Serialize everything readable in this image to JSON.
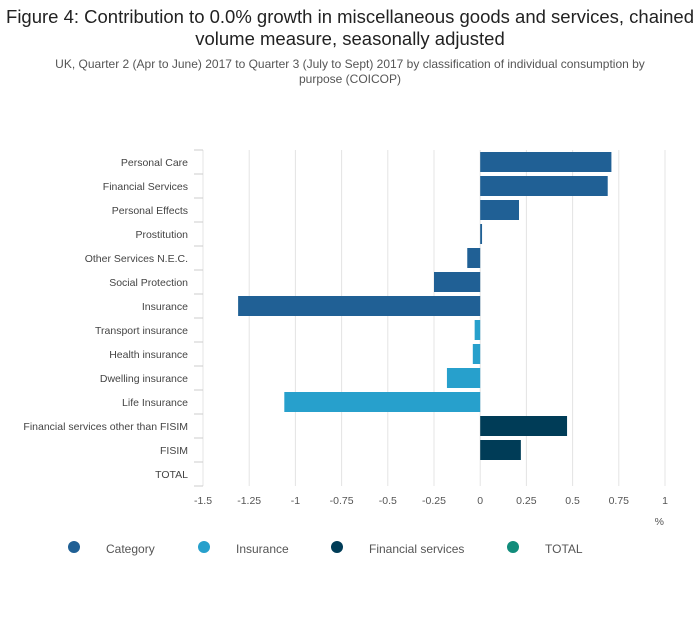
{
  "chart_data": {
    "type": "bar",
    "orientation": "horizontal",
    "title": "Figure 4: Contribution to 0.0% growth in miscellaneous goods and services, chained volume measure, seasonally adjusted",
    "subtitle": "UK, Quarter 2 (Apr to June) 2017 to Quarter 3 (July to Sept) 2017 by classification of individual consumption by purpose (COICOP)",
    "xlabel": "%",
    "xlim": [
      -1.5,
      1
    ],
    "xticks": [
      -1.5,
      -1.25,
      -1,
      -0.75,
      -0.5,
      -0.25,
      0,
      0.25,
      0.5,
      0.75,
      1
    ],
    "xtick_labels": [
      "-1.5",
      "-1.25",
      "-1",
      "-0.75",
      "-0.5",
      "-0.25",
      "0",
      "0.25",
      "0.5",
      "0.75",
      "1"
    ],
    "grid": true,
    "legend_position": "bottom",
    "categories": [
      "Personal Care",
      "Financial Services",
      "Personal Effects",
      "Prostitution",
      "Other Services N.E.C.",
      "Social Protection",
      "Insurance",
      "Transport insurance",
      "Health insurance",
      "Dwelling insurance",
      "Life Insurance",
      "Financial services other than FISIM",
      "FISIM",
      "TOTAL"
    ],
    "values": [
      0.71,
      0.69,
      0.21,
      0.01,
      -0.07,
      -0.25,
      -1.31,
      -0.03,
      -0.04,
      -0.18,
      -1.06,
      0.47,
      0.22,
      0
    ],
    "bar_groups": [
      "Category",
      "Category",
      "Category",
      "Category",
      "Category",
      "Category",
      "Category",
      "Insurance",
      "Insurance",
      "Insurance",
      "Insurance",
      "Financial services",
      "Financial services",
      "TOTAL"
    ],
    "series": [
      {
        "name": "Category",
        "color": "#206095"
      },
      {
        "name": "Insurance",
        "color": "#27a0cc"
      },
      {
        "name": "Financial services",
        "color": "#003c57"
      },
      {
        "name": "TOTAL",
        "color": "#118c7b"
      }
    ]
  }
}
